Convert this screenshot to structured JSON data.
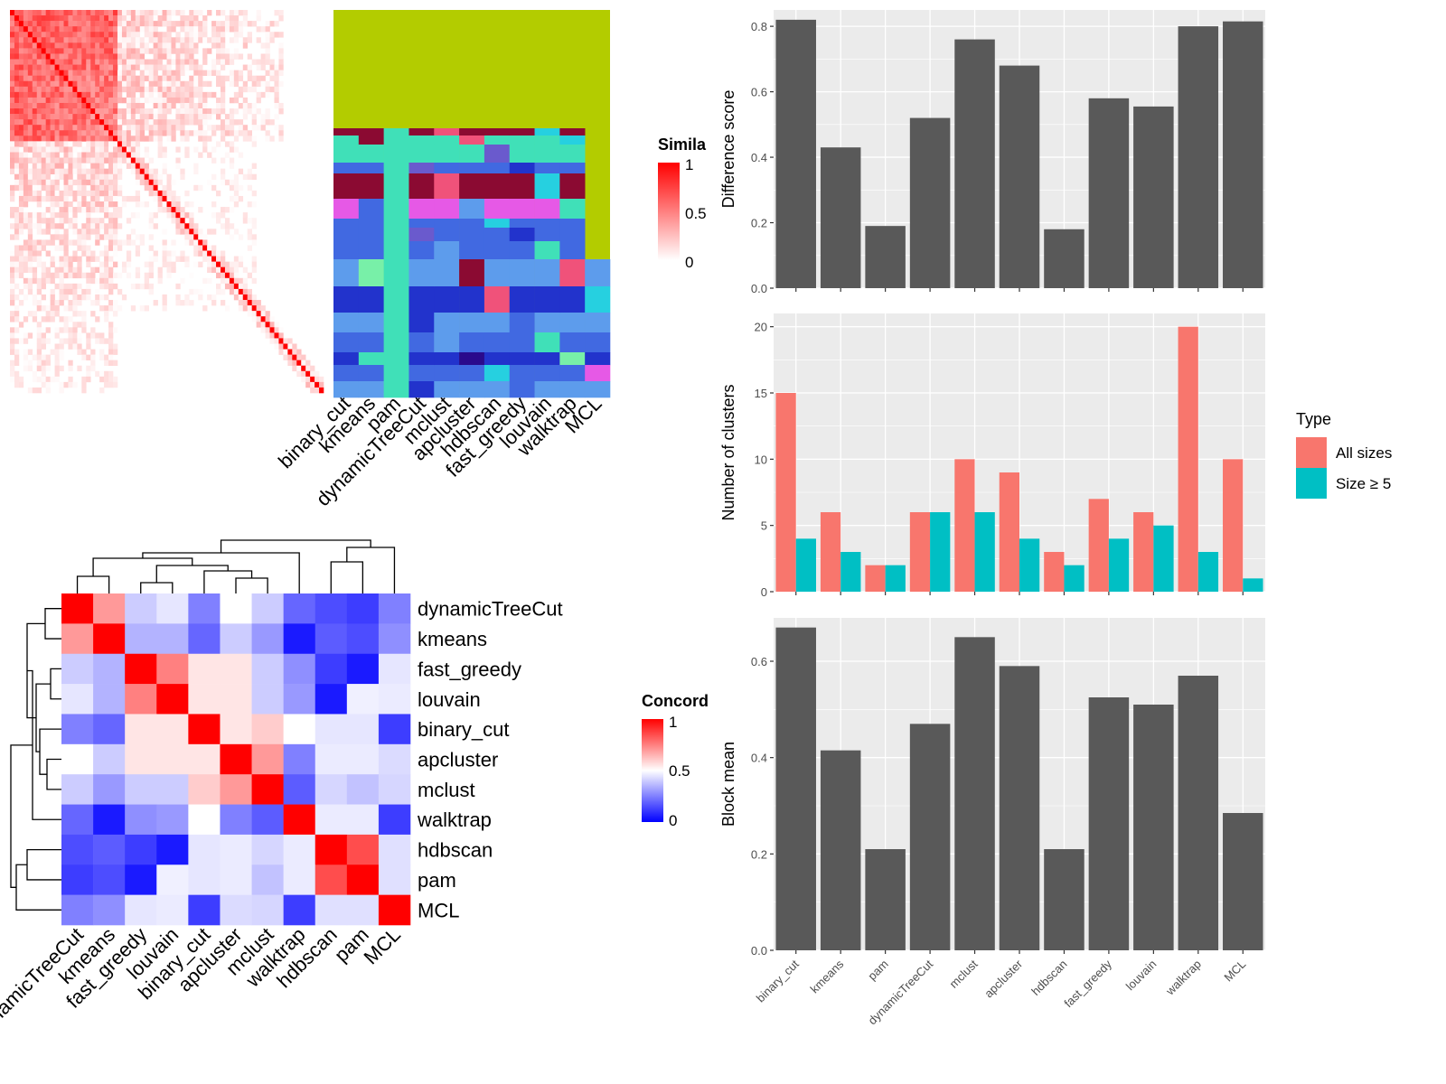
{
  "colors": {
    "panel_bg": "#ebebeb",
    "grid": "#ffffff",
    "bar": "#595959",
    "all_sizes": "#f8766d",
    "size_ge5": "#00bfc4",
    "heat_high": "#ff0000",
    "heat_mid": "#ffffff",
    "heat_low": "#0000ff",
    "memb_top": "#b3cc00"
  },
  "methods_membership": [
    "binary_cut",
    "kmeans",
    "pam",
    "dynamicTreeCut",
    "mclust",
    "apcluster",
    "hdbscan",
    "fast_greedy",
    "louvain",
    "walktrap",
    "MCL"
  ],
  "methods_concordance": [
    "dynamicTreeCut",
    "kmeans",
    "fast_greedy",
    "louvain",
    "binary_cut",
    "apcluster",
    "mclust",
    "walktrap",
    "hdbscan",
    "pam",
    "MCL"
  ],
  "legends": {
    "similarity": {
      "title": "Simila",
      "ticks": [
        "1",
        "0.5",
        "0"
      ]
    },
    "concordance": {
      "title": "Concord",
      "ticks": [
        "1",
        "0.5",
        "0"
      ]
    },
    "type": {
      "title": "Type",
      "items": [
        "All sizes",
        "Size ≥ 5"
      ]
    }
  },
  "chart_data": [
    {
      "type": "heatmap",
      "id": "similarity-matrix",
      "title": "",
      "legend": "Similarity",
      "range": [
        0,
        1
      ],
      "n_terms": 70
    },
    {
      "type": "heatmap",
      "id": "cluster-membership",
      "title": "",
      "columns": [
        "binary_cut",
        "kmeans",
        "pam",
        "dynamicTreeCut",
        "mclust",
        "apcluster",
        "hdbscan",
        "fast_greedy",
        "louvain",
        "walktrap",
        "MCL"
      ]
    },
    {
      "type": "heatmap",
      "id": "concordance-matrix",
      "legend": "Concordance",
      "range": [
        0,
        1
      ],
      "rows": [
        "dynamicTreeCut",
        "kmeans",
        "fast_greedy",
        "louvain",
        "binary_cut",
        "apcluster",
        "mclust",
        "walktrap",
        "hdbscan",
        "pam",
        "MCL"
      ],
      "columns": [
        "dynamicTreeCut",
        "kmeans",
        "fast_greedy",
        "louvain",
        "binary_cut",
        "apcluster",
        "mclust",
        "walktrap",
        "hdbscan",
        "pam",
        "MCL"
      ],
      "values": [
        [
          1.0,
          0.7,
          0.4,
          0.45,
          0.25,
          0.5,
          0.4,
          0.2,
          0.15,
          0.12,
          0.25
        ],
        [
          0.7,
          1.0,
          0.35,
          0.35,
          0.2,
          0.4,
          0.3,
          0.05,
          0.18,
          0.15,
          0.28
        ],
        [
          0.4,
          0.35,
          1.0,
          0.75,
          0.55,
          0.55,
          0.4,
          0.28,
          0.12,
          0.05,
          0.45
        ],
        [
          0.45,
          0.35,
          0.75,
          1.0,
          0.55,
          0.55,
          0.4,
          0.3,
          0.05,
          0.47,
          0.46
        ],
        [
          0.25,
          0.2,
          0.55,
          0.55,
          1.0,
          0.55,
          0.6,
          0.5,
          0.45,
          0.45,
          0.12
        ],
        [
          0.5,
          0.4,
          0.55,
          0.55,
          0.55,
          1.0,
          0.7,
          0.25,
          0.46,
          0.46,
          0.43
        ],
        [
          0.4,
          0.3,
          0.4,
          0.4,
          0.6,
          0.7,
          1.0,
          0.18,
          0.42,
          0.38,
          0.42
        ],
        [
          0.2,
          0.05,
          0.28,
          0.3,
          0.5,
          0.25,
          0.18,
          1.0,
          0.46,
          0.46,
          0.12
        ],
        [
          0.15,
          0.18,
          0.12,
          0.05,
          0.45,
          0.46,
          0.42,
          0.46,
          1.0,
          0.85,
          0.44
        ],
        [
          0.12,
          0.15,
          0.05,
          0.47,
          0.45,
          0.46,
          0.38,
          0.46,
          0.85,
          1.0,
          0.44
        ],
        [
          0.25,
          0.28,
          0.45,
          0.46,
          0.12,
          0.43,
          0.42,
          0.12,
          0.44,
          0.44,
          1.0
        ]
      ]
    },
    {
      "type": "bar",
      "id": "difference-score",
      "ylabel": "Difference score",
      "categories": [
        "binary_cut",
        "kmeans",
        "pam",
        "dynamicTreeCut",
        "mclust",
        "apcluster",
        "hdbscan",
        "fast_greedy",
        "louvain",
        "walktrap",
        "MCL"
      ],
      "values": [
        0.82,
        0.43,
        0.19,
        0.52,
        0.76,
        0.68,
        0.18,
        0.58,
        0.555,
        0.8,
        0.815
      ],
      "ylim": [
        0,
        0.85
      ],
      "yticks": [
        0.0,
        0.2,
        0.4,
        0.6,
        0.8
      ],
      "ytick_labels": [
        "0.0",
        "0.2",
        "0.4",
        "0.6",
        "0.8"
      ]
    },
    {
      "type": "bar",
      "id": "number-of-clusters",
      "ylabel": "Number of clusters",
      "categories": [
        "binary_cut",
        "kmeans",
        "pam",
        "dynamicTreeCut",
        "mclust",
        "apcluster",
        "hdbscan",
        "fast_greedy",
        "louvain",
        "walktrap",
        "MCL"
      ],
      "series": [
        {
          "name": "All sizes",
          "values": [
            15,
            6,
            2,
            6,
            10,
            9,
            3,
            7,
            6,
            20,
            10
          ]
        },
        {
          "name": "Size ≥ 5",
          "values": [
            4,
            3,
            2,
            6,
            6,
            4,
            2,
            4,
            5,
            3,
            1
          ]
        }
      ],
      "ylim": [
        0,
        21
      ],
      "yticks": [
        0,
        5,
        10,
        15,
        20
      ],
      "ytick_labels": [
        "0",
        "5",
        "10",
        "15",
        "20"
      ],
      "legend_title": "Type",
      "legend_position": "right"
    },
    {
      "type": "bar",
      "id": "block-mean",
      "ylabel": "Block mean",
      "categories": [
        "binary_cut",
        "kmeans",
        "pam",
        "dynamicTreeCut",
        "mclust",
        "apcluster",
        "hdbscan",
        "fast_greedy",
        "louvain",
        "walktrap",
        "MCL"
      ],
      "values": [
        0.67,
        0.415,
        0.21,
        0.47,
        0.65,
        0.59,
        0.21,
        0.525,
        0.51,
        0.57,
        0.285
      ],
      "ylim": [
        0,
        0.69
      ],
      "yticks": [
        0.0,
        0.2,
        0.4,
        0.6
      ],
      "ytick_labels": [
        "0.0",
        "0.2",
        "0.4",
        "0.6"
      ]
    }
  ]
}
